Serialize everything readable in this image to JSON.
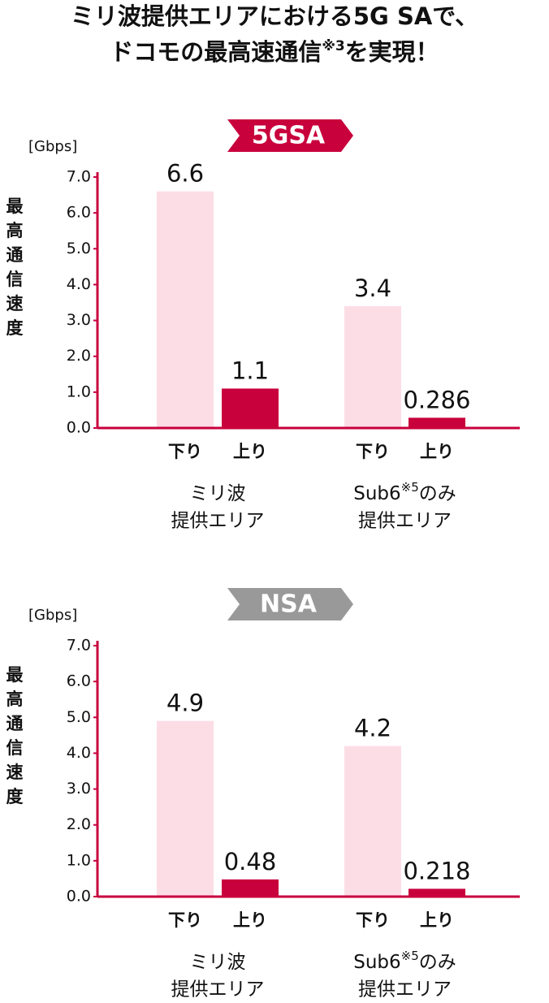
{
  "header": {
    "line1": "ミリ波提供エリアにおける5G SAで、",
    "line2": "ドコモの最高速通信",
    "line2_note": "※3",
    "line2_after": "を実現！"
  },
  "chart_data": [
    {
      "type": "bar",
      "badge": "5GSA",
      "badge_color": "#c8003c",
      "unit": "[Gbps]",
      "ylabel": "最高通信速度",
      "axis_color": "#c8003c",
      "categories": [
        {
          "line1": "ミリ波",
          "line2": "提供エリア"
        },
        {
          "line1": "Sub6",
          "note": "※5",
          "line1_after": "のみ",
          "line2": "提供エリア"
        }
      ],
      "series": [
        {
          "name": "下り",
          "color": "#fcdde6",
          "values": [
            6.6,
            3.4
          ],
          "value_label_colors": [
            "#c8003c",
            "#111111"
          ]
        },
        {
          "name": "上り",
          "color": "#c8003c",
          "values": [
            1.1,
            0.286
          ],
          "value_label_colors": [
            "#c8003c",
            "#111111"
          ]
        }
      ],
      "ylim": [
        0,
        7
      ],
      "yticks": [
        {
          "value": 0,
          "label": "0.0"
        },
        {
          "value": 1,
          "label": "1.0"
        },
        {
          "value": 2,
          "label": "2.0"
        },
        {
          "value": 3,
          "label": "3.0"
        },
        {
          "value": 4,
          "label": "4.0"
        },
        {
          "value": 5,
          "label": "5.0"
        },
        {
          "value": 6,
          "label": "6.0"
        },
        {
          "value": 7,
          "label": "7.0"
        }
      ]
    },
    {
      "type": "bar",
      "badge": "NSA",
      "badge_color": "#999999",
      "unit": "[Gbps]",
      "ylabel": "最高通信速度",
      "axis_color": "#c8003c",
      "categories": [
        {
          "line1": "ミリ波",
          "line2": "提供エリア"
        },
        {
          "line1": "Sub6",
          "note": "※5",
          "line1_after": "のみ",
          "line2": "提供エリア"
        }
      ],
      "series": [
        {
          "name": "下り",
          "color": "#fcdde6",
          "values": [
            4.9,
            4.2
          ],
          "value_label_colors": [
            "#111111",
            "#111111"
          ]
        },
        {
          "name": "上り",
          "color": "#c8003c",
          "values": [
            0.48,
            0.218
          ],
          "value_label_colors": [
            "#111111",
            "#111111"
          ]
        }
      ],
      "ylim": [
        0,
        7
      ],
      "yticks": [
        {
          "value": 0,
          "label": "0.0"
        },
        {
          "value": 1,
          "label": "1.0"
        },
        {
          "value": 2,
          "label": "2.0"
        },
        {
          "value": 3,
          "label": "3.0"
        },
        {
          "value": 4,
          "label": "4.0"
        },
        {
          "value": 5,
          "label": "5.0"
        },
        {
          "value": 6,
          "label": "6.0"
        },
        {
          "value": 7,
          "label": "7.0"
        }
      ]
    }
  ]
}
